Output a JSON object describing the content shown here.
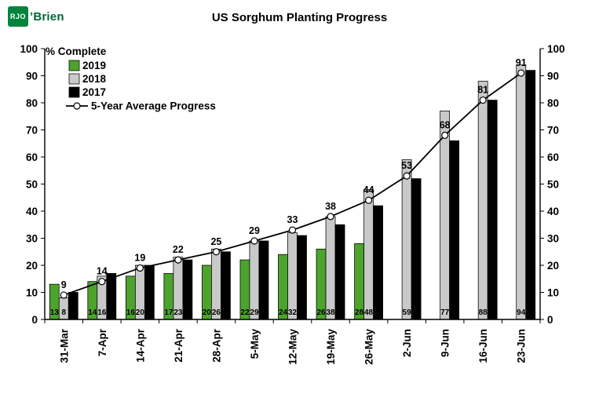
{
  "logo": {
    "box_text": "RJO",
    "suffix": "’Brien"
  },
  "chart_data": {
    "type": "bar",
    "title": "US Sorghum Planting Progress",
    "unit_label": "% Complete",
    "categories": [
      "31-Mar",
      "7-Apr",
      "14-Apr",
      "21-Apr",
      "28-Apr",
      "5-May",
      "12-May",
      "19-May",
      "26-May",
      "2-Jun",
      "9-Jun",
      "16-Jun",
      "23-Jun"
    ],
    "series": [
      {
        "name": "2019",
        "type": "bar",
        "color": "#4ca42c",
        "values": [
          13,
          14,
          16,
          17,
          20,
          22,
          24,
          26,
          28,
          null,
          null,
          null,
          null
        ]
      },
      {
        "name": "2018",
        "type": "bar",
        "color": "#c9c9c9",
        "values": [
          8,
          16,
          20,
          23,
          26,
          29,
          32,
          38,
          48,
          59,
          77,
          88,
          94
        ]
      },
      {
        "name": "2017",
        "type": "bar",
        "color": "#000000",
        "values": [
          10,
          17,
          20,
          22,
          25,
          29,
          31,
          35,
          42,
          52,
          66,
          81,
          92
        ]
      },
      {
        "name": "5-Year Average Progress",
        "type": "line",
        "color": "#000000",
        "marker": "white-circle",
        "values": [
          9,
          14,
          19,
          22,
          25,
          29,
          33,
          38,
          44,
          53,
          68,
          81,
          91
        ]
      }
    ],
    "ylim": [
      0,
      100
    ],
    "ytick_step": 10,
    "grid": false,
    "legend_position": "top-left",
    "labels": {
      "line_point_labels": [
        9,
        14,
        19,
        22,
        25,
        29,
        33,
        38,
        44,
        53,
        68,
        81,
        91
      ],
      "bottom_labels_2019": [
        13,
        14,
        16,
        17,
        20,
        22,
        24,
        26,
        28
      ],
      "bottom_labels_2018": [
        8,
        16,
        20,
        23,
        26,
        29,
        32,
        38,
        48,
        59,
        77,
        88,
        94
      ]
    }
  }
}
